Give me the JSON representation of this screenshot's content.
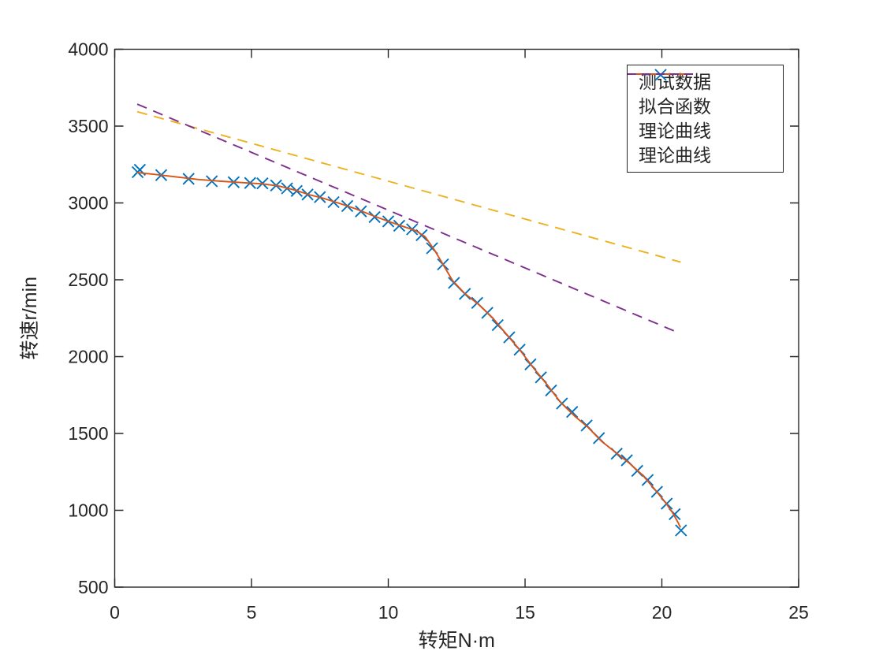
{
  "figure": {
    "background": "#ffffff",
    "axis_color": "#262626",
    "text_color": "#262626"
  },
  "chart_data": {
    "type": "scatter",
    "title": "",
    "xlabel": "转矩N·m",
    "ylabel": "转速r/min",
    "xlim": [
      0,
      25
    ],
    "ylim": [
      500,
      4000
    ],
    "x_ticks": [
      0,
      5,
      10,
      15,
      20,
      25
    ],
    "y_ticks": [
      500,
      1000,
      1500,
      2000,
      2500,
      3000,
      3500,
      4000
    ],
    "grid": false,
    "legend_position": "top-right",
    "series": [
      {
        "name": "测试数据",
        "type": "scatter",
        "marker": "x",
        "color": "#0072BD",
        "points": [
          [
            0.84,
            3200
          ],
          [
            0.92,
            3216
          ],
          [
            1.7,
            3181
          ],
          [
            2.7,
            3157
          ],
          [
            3.55,
            3141
          ],
          [
            4.35,
            3135
          ],
          [
            4.95,
            3130
          ],
          [
            5.4,
            3127
          ],
          [
            5.9,
            3114
          ],
          [
            6.3,
            3095
          ],
          [
            6.65,
            3078
          ],
          [
            7.05,
            3055
          ],
          [
            7.5,
            3038
          ],
          [
            8.0,
            3005
          ],
          [
            8.5,
            2980
          ],
          [
            9.0,
            2945
          ],
          [
            9.5,
            2908
          ],
          [
            10.0,
            2880
          ],
          [
            10.4,
            2852
          ],
          [
            10.87,
            2828
          ],
          [
            11.22,
            2790
          ],
          [
            11.6,
            2705
          ],
          [
            12.0,
            2600
          ],
          [
            12.4,
            2480
          ],
          [
            12.8,
            2408
          ],
          [
            13.25,
            2350
          ],
          [
            13.62,
            2285
          ],
          [
            14.0,
            2205
          ],
          [
            14.42,
            2125
          ],
          [
            14.8,
            2045
          ],
          [
            15.2,
            1950
          ],
          [
            15.58,
            1865
          ],
          [
            15.95,
            1780
          ],
          [
            16.35,
            1695
          ],
          [
            16.72,
            1640
          ],
          [
            17.25,
            1552
          ],
          [
            17.7,
            1470
          ],
          [
            18.35,
            1368
          ],
          [
            18.72,
            1325
          ],
          [
            19.1,
            1257
          ],
          [
            19.48,
            1197
          ],
          [
            19.82,
            1120
          ],
          [
            20.18,
            1043
          ],
          [
            20.47,
            975
          ],
          [
            20.7,
            869
          ]
        ]
      },
      {
        "name": "拟合函数",
        "type": "line",
        "style": "solid",
        "color": "#D95319",
        "points": [
          [
            0.82,
            3198
          ],
          [
            1.5,
            3185
          ],
          [
            2.3,
            3168
          ],
          [
            3.1,
            3152
          ],
          [
            3.9,
            3141
          ],
          [
            4.7,
            3132
          ],
          [
            5.4,
            3124
          ],
          [
            6.0,
            3110
          ],
          [
            6.6,
            3083
          ],
          [
            7.1,
            3054
          ],
          [
            7.6,
            3032
          ],
          [
            8.2,
            2998
          ],
          [
            8.8,
            2962
          ],
          [
            9.4,
            2920
          ],
          [
            10.0,
            2880
          ],
          [
            10.5,
            2850
          ],
          [
            11.0,
            2820
          ],
          [
            11.35,
            2780
          ],
          [
            11.7,
            2690
          ],
          [
            12.0,
            2600
          ],
          [
            12.35,
            2495
          ],
          [
            12.8,
            2410
          ],
          [
            13.3,
            2340
          ],
          [
            13.8,
            2255
          ],
          [
            14.3,
            2150
          ],
          [
            14.8,
            2045
          ],
          [
            15.3,
            1928
          ],
          [
            15.8,
            1818
          ],
          [
            16.3,
            1702
          ],
          [
            16.8,
            1615
          ],
          [
            17.3,
            1540
          ],
          [
            17.8,
            1448
          ],
          [
            18.3,
            1378
          ],
          [
            18.8,
            1308
          ],
          [
            19.3,
            1228
          ],
          [
            19.7,
            1145
          ],
          [
            20.1,
            1058
          ],
          [
            20.4,
            982
          ],
          [
            20.6,
            918
          ],
          [
            20.68,
            888
          ]
        ]
      },
      {
        "name": "理论曲线",
        "type": "line",
        "style": "dashed",
        "color": "#EDB120",
        "points": [
          [
            0.82,
            3594
          ],
          [
            20.69,
            2615
          ]
        ]
      },
      {
        "name": "理论曲线",
        "type": "line",
        "style": "dashed",
        "color": "#7E2F8E",
        "points": [
          [
            0.82,
            3643
          ],
          [
            20.64,
            2153
          ]
        ]
      }
    ]
  }
}
